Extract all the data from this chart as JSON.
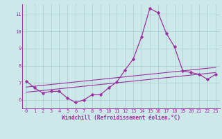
{
  "xlabel": "Windchill (Refroidissement éolien,°C)",
  "x_values": [
    0,
    1,
    2,
    3,
    4,
    5,
    6,
    7,
    8,
    9,
    10,
    11,
    12,
    13,
    14,
    15,
    16,
    17,
    18,
    19,
    20,
    21,
    22,
    23
  ],
  "main_line": [
    7.1,
    6.7,
    6.4,
    6.5,
    6.5,
    6.1,
    5.85,
    6.0,
    6.3,
    6.3,
    6.7,
    7.05,
    7.75,
    8.4,
    9.7,
    11.35,
    11.1,
    9.9,
    9.1,
    7.7,
    7.6,
    7.5,
    7.2,
    7.5
  ],
  "trend_line1": [
    6.45,
    6.5,
    6.55,
    6.6,
    6.65,
    6.7,
    6.75,
    6.8,
    6.85,
    6.9,
    6.95,
    7.0,
    7.05,
    7.1,
    7.15,
    7.2,
    7.25,
    7.3,
    7.35,
    7.4,
    7.45,
    7.5,
    7.55,
    7.6
  ],
  "trend_line2": [
    6.75,
    6.8,
    6.85,
    6.9,
    6.95,
    7.0,
    7.05,
    7.1,
    7.15,
    7.2,
    7.25,
    7.3,
    7.35,
    7.4,
    7.45,
    7.5,
    7.55,
    7.6,
    7.65,
    7.7,
    7.75,
    7.8,
    7.85,
    7.9
  ],
  "line_color": "#9b30a0",
  "bg_color": "#cce8e8",
  "grid_color": "#aacccc",
  "ylim": [
    5.5,
    11.6
  ],
  "yticks": [
    6,
    7,
    8,
    9,
    10,
    11
  ],
  "xlim": [
    -0.5,
    23.5
  ],
  "tick_fontsize": 5.0,
  "xlabel_fontsize": 5.5
}
